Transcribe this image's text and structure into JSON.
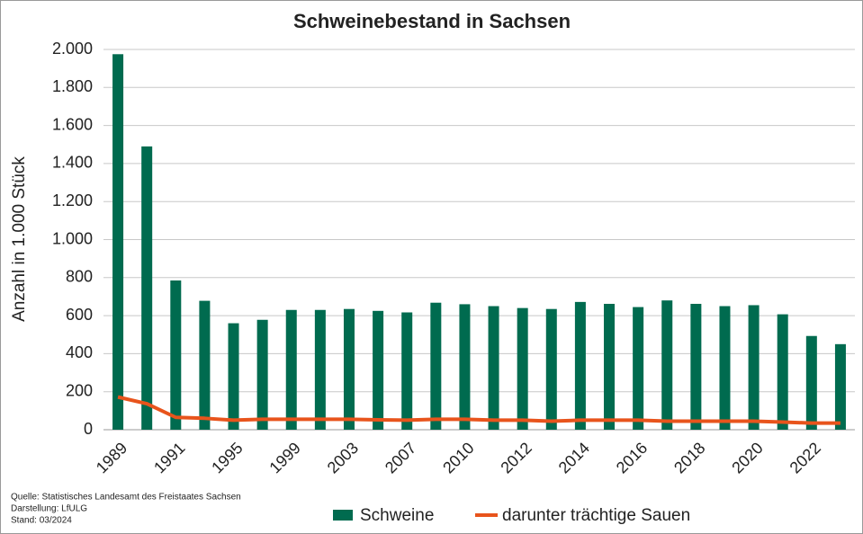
{
  "chart_data": {
    "type": "bar_line",
    "title": "Schweinebestand in Sachsen",
    "y_label": "Anzahl  in 1.000 Stück",
    "categories": [
      "1989",
      null,
      "1991",
      null,
      "1995",
      null,
      "1999",
      null,
      "2003",
      null,
      "2007",
      null,
      "2010",
      null,
      "2012",
      null,
      "2014",
      null,
      "2016",
      null,
      "2018",
      null,
      "2020",
      null,
      "2022",
      null
    ],
    "series": [
      {
        "name": "Schweine",
        "kind": "bar",
        "color": "#006b4f",
        "values": [
          1975,
          1490,
          785,
          678,
          560,
          578,
          630,
          630,
          635,
          625,
          617,
          668,
          660,
          650,
          640,
          635,
          672,
          662,
          645,
          680,
          662,
          650,
          655,
          607,
          493,
          450
        ]
      },
      {
        "name": "darunter trächtige Sauen",
        "kind": "line",
        "color": "#e8541c",
        "values": [
          172,
          137,
          65,
          60,
          50,
          55,
          55,
          55,
          55,
          52,
          50,
          55,
          55,
          50,
          50,
          45,
          50,
          50,
          50,
          45,
          45,
          45,
          45,
          40,
          35,
          35
        ]
      }
    ],
    "ylim": [
      0,
      2000
    ],
    "yticks": [
      0,
      200,
      400,
      600,
      800,
      {
        "value": 1000,
        "label": "1.000"
      },
      {
        "value": 1200,
        "label": "1.200"
      },
      {
        "value": 1400,
        "label": "1.400"
      },
      {
        "value": 1600,
        "label": "1.600"
      },
      {
        "value": 1800,
        "label": "1.800"
      },
      {
        "value": 2000,
        "label": "2.000"
      }
    ],
    "grid": true,
    "source": [
      "Quelle:  Statistisches Landesamt des Freistaates Sachsen",
      "Darstellung: LfULG",
      "Stand: 03/2024"
    ]
  }
}
